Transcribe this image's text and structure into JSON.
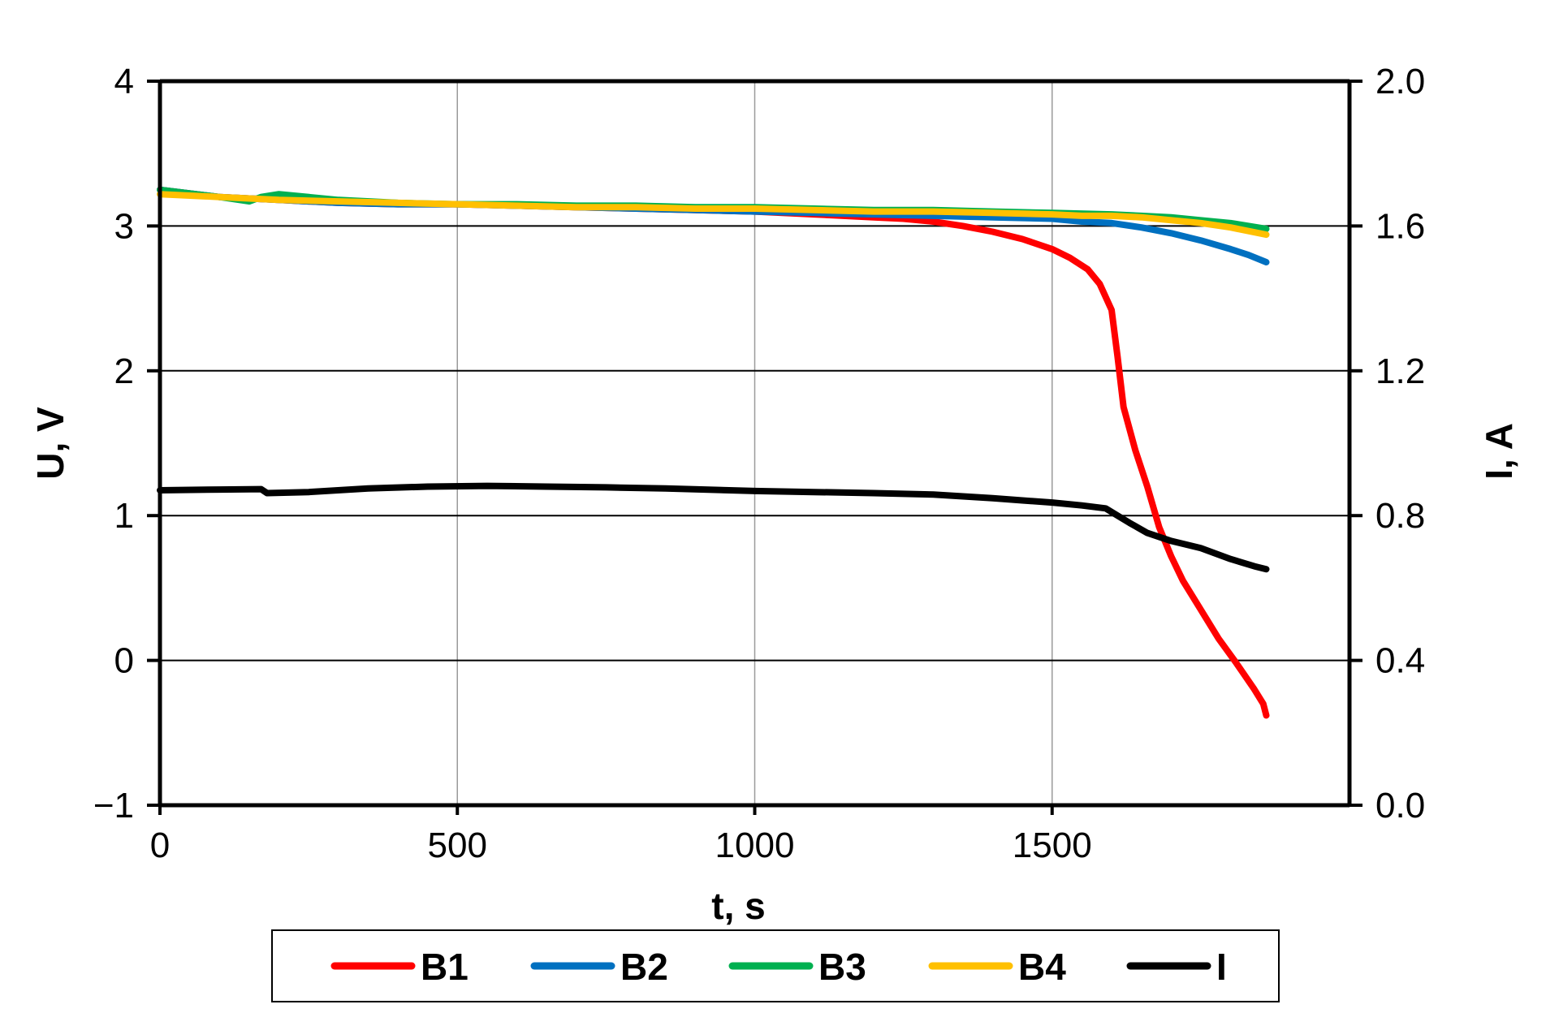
{
  "chart_data": {
    "type": "line",
    "xlabel": "t, s",
    "ylabel_left": "U, V",
    "ylabel_right": "I, A",
    "xlim": [
      0,
      2000
    ],
    "ylim_left": [
      -1,
      4
    ],
    "ylim_right": [
      0.0,
      2.0
    ],
    "x_ticks": [
      0,
      500,
      1000,
      1500
    ],
    "y_left_ticks": [
      -1,
      0,
      1,
      2,
      3,
      4
    ],
    "y_left_tick_labels": [
      "−1",
      "0",
      "1",
      "2",
      "3",
      "4"
    ],
    "y_right_ticks": [
      0.0,
      0.4,
      0.8,
      1.2,
      1.6,
      2.0
    ],
    "y_right_tick_labels": [
      "0.0",
      "0.4",
      "0.8",
      "1.2",
      "1.6",
      "2.0"
    ],
    "grid": {
      "horizontal": true,
      "vertical": true
    },
    "legend": {
      "position": "bottom"
    },
    "series": [
      {
        "name": "B1",
        "axis": "left",
        "color": "#ff0000",
        "points": [
          [
            0,
            3.25
          ],
          [
            100,
            3.2
          ],
          [
            200,
            3.18
          ],
          [
            300,
            3.16
          ],
          [
            400,
            3.15
          ],
          [
            500,
            3.15
          ],
          [
            600,
            3.14
          ],
          [
            700,
            3.13
          ],
          [
            800,
            3.12
          ],
          [
            900,
            3.11
          ],
          [
            1000,
            3.1
          ],
          [
            1100,
            3.08
          ],
          [
            1200,
            3.06
          ],
          [
            1250,
            3.05
          ],
          [
            1300,
            3.03
          ],
          [
            1350,
            3.0
          ],
          [
            1400,
            2.96
          ],
          [
            1450,
            2.91
          ],
          [
            1500,
            2.84
          ],
          [
            1530,
            2.78
          ],
          [
            1560,
            2.7
          ],
          [
            1580,
            2.6
          ],
          [
            1600,
            2.42
          ],
          [
            1610,
            2.1
          ],
          [
            1620,
            1.75
          ],
          [
            1640,
            1.45
          ],
          [
            1660,
            1.2
          ],
          [
            1680,
            0.92
          ],
          [
            1700,
            0.72
          ],
          [
            1720,
            0.55
          ],
          [
            1750,
            0.35
          ],
          [
            1780,
            0.15
          ],
          [
            1810,
            -0.02
          ],
          [
            1840,
            -0.2
          ],
          [
            1855,
            -0.3
          ],
          [
            1860,
            -0.38
          ]
        ]
      },
      {
        "name": "B2",
        "axis": "left",
        "color": "#0070c0",
        "points": [
          [
            0,
            3.25
          ],
          [
            100,
            3.2
          ],
          [
            200,
            3.18
          ],
          [
            300,
            3.16
          ],
          [
            400,
            3.15
          ],
          [
            500,
            3.15
          ],
          [
            600,
            3.14
          ],
          [
            700,
            3.13
          ],
          [
            800,
            3.12
          ],
          [
            900,
            3.11
          ],
          [
            1000,
            3.1
          ],
          [
            1100,
            3.09
          ],
          [
            1200,
            3.08
          ],
          [
            1300,
            3.07
          ],
          [
            1400,
            3.06
          ],
          [
            1500,
            3.05
          ],
          [
            1550,
            3.03
          ],
          [
            1600,
            3.02
          ],
          [
            1650,
            2.99
          ],
          [
            1700,
            2.95
          ],
          [
            1750,
            2.9
          ],
          [
            1800,
            2.84
          ],
          [
            1830,
            2.8
          ],
          [
            1860,
            2.75
          ]
        ]
      },
      {
        "name": "B3",
        "axis": "left",
        "color": "#00b050",
        "points": [
          [
            0,
            3.25
          ],
          [
            100,
            3.2
          ],
          [
            150,
            3.17
          ],
          [
            170,
            3.2
          ],
          [
            200,
            3.22
          ],
          [
            300,
            3.18
          ],
          [
            400,
            3.16
          ],
          [
            500,
            3.15
          ],
          [
            600,
            3.15
          ],
          [
            700,
            3.14
          ],
          [
            800,
            3.14
          ],
          [
            900,
            3.13
          ],
          [
            1000,
            3.13
          ],
          [
            1100,
            3.12
          ],
          [
            1200,
            3.11
          ],
          [
            1300,
            3.11
          ],
          [
            1400,
            3.1
          ],
          [
            1500,
            3.09
          ],
          [
            1600,
            3.08
          ],
          [
            1650,
            3.07
          ],
          [
            1700,
            3.06
          ],
          [
            1750,
            3.04
          ],
          [
            1800,
            3.02
          ],
          [
            1860,
            2.98
          ]
        ]
      },
      {
        "name": "B4",
        "axis": "left",
        "color": "#ffc000",
        "points": [
          [
            0,
            3.22
          ],
          [
            100,
            3.2
          ],
          [
            200,
            3.18
          ],
          [
            300,
            3.17
          ],
          [
            400,
            3.16
          ],
          [
            500,
            3.15
          ],
          [
            600,
            3.14
          ],
          [
            700,
            3.13
          ],
          [
            800,
            3.13
          ],
          [
            900,
            3.12
          ],
          [
            1000,
            3.12
          ],
          [
            1100,
            3.11
          ],
          [
            1200,
            3.1
          ],
          [
            1300,
            3.1
          ],
          [
            1400,
            3.09
          ],
          [
            1500,
            3.08
          ],
          [
            1550,
            3.07
          ],
          [
            1600,
            3.07
          ],
          [
            1650,
            3.06
          ],
          [
            1700,
            3.04
          ],
          [
            1750,
            3.02
          ],
          [
            1800,
            2.99
          ],
          [
            1860,
            2.94
          ]
        ]
      },
      {
        "name": "I",
        "axis": "right",
        "color": "#000000",
        "points": [
          [
            0,
            0.87
          ],
          [
            100,
            0.872
          ],
          [
            170,
            0.873
          ],
          [
            180,
            0.862
          ],
          [
            250,
            0.865
          ],
          [
            350,
            0.875
          ],
          [
            450,
            0.88
          ],
          [
            550,
            0.882
          ],
          [
            650,
            0.88
          ],
          [
            750,
            0.878
          ],
          [
            850,
            0.875
          ],
          [
            1000,
            0.868
          ],
          [
            1100,
            0.865
          ],
          [
            1200,
            0.862
          ],
          [
            1300,
            0.858
          ],
          [
            1400,
            0.848
          ],
          [
            1450,
            0.842
          ],
          [
            1500,
            0.836
          ],
          [
            1550,
            0.828
          ],
          [
            1590,
            0.82
          ],
          [
            1610,
            0.8
          ],
          [
            1630,
            0.78
          ],
          [
            1660,
            0.752
          ],
          [
            1700,
            0.73
          ],
          [
            1750,
            0.71
          ],
          [
            1800,
            0.68
          ],
          [
            1840,
            0.66
          ],
          [
            1860,
            0.652
          ]
        ]
      }
    ]
  }
}
